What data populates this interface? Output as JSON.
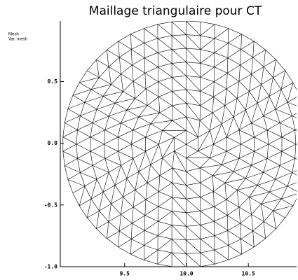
{
  "chart_data": {
    "type": "mesh",
    "title": "Maillage triangulaire pour CT",
    "legend": [
      "Mesh",
      "Var: mesh"
    ],
    "xlim": [
      8.98,
      10.89
    ],
    "ylim": [
      -1.0,
      0.99
    ],
    "xticks": [
      9.5,
      {
        "value": 10.0,
        "label": "10.0"
      },
      10.5
    ],
    "yticks": [
      {
        "value": -1.0,
        "label": "-1.0"
      },
      -0.5,
      {
        "value": 0.0,
        "label": "0.0"
      },
      0.5
    ]
  }
}
